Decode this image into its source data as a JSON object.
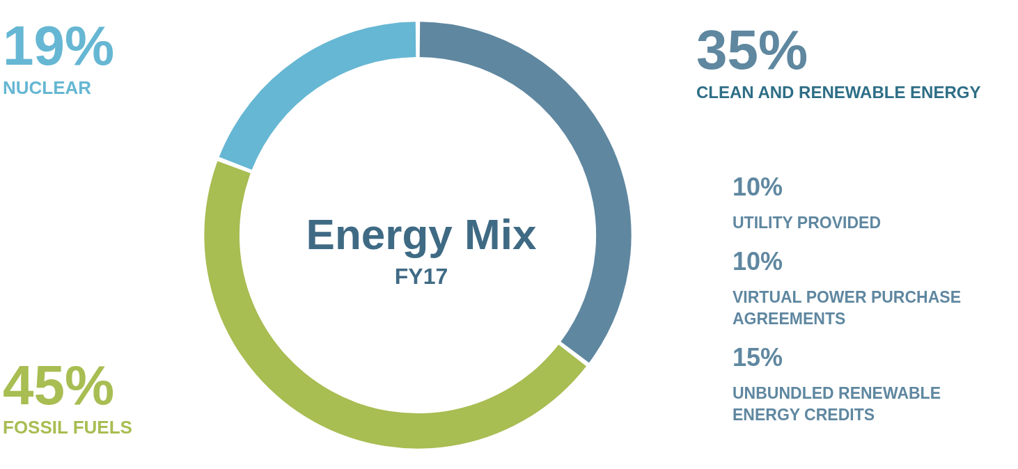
{
  "chart_data": {
    "type": "donut",
    "title": "Energy Mix",
    "subtitle": "FY17",
    "categories": [
      "CLEAN AND RENEWABLE ENERGY",
      "FOSSIL FUELS",
      "NUCLEAR"
    ],
    "values": [
      35,
      45,
      19
    ],
    "colors": [
      "#5f87a0",
      "#a8bd52",
      "#66b7d3"
    ],
    "value_labels": [
      "35%",
      "45%",
      "19%"
    ],
    "legend": false,
    "annotations": [
      "10%",
      "UTILITY PROVIDED",
      "10%",
      "VIRTUAL POWER PURCHASE AGREEMENTS",
      "15%",
      "UNBUNDLED RENEWABLE ENERGY CREDITS"
    ]
  }
}
